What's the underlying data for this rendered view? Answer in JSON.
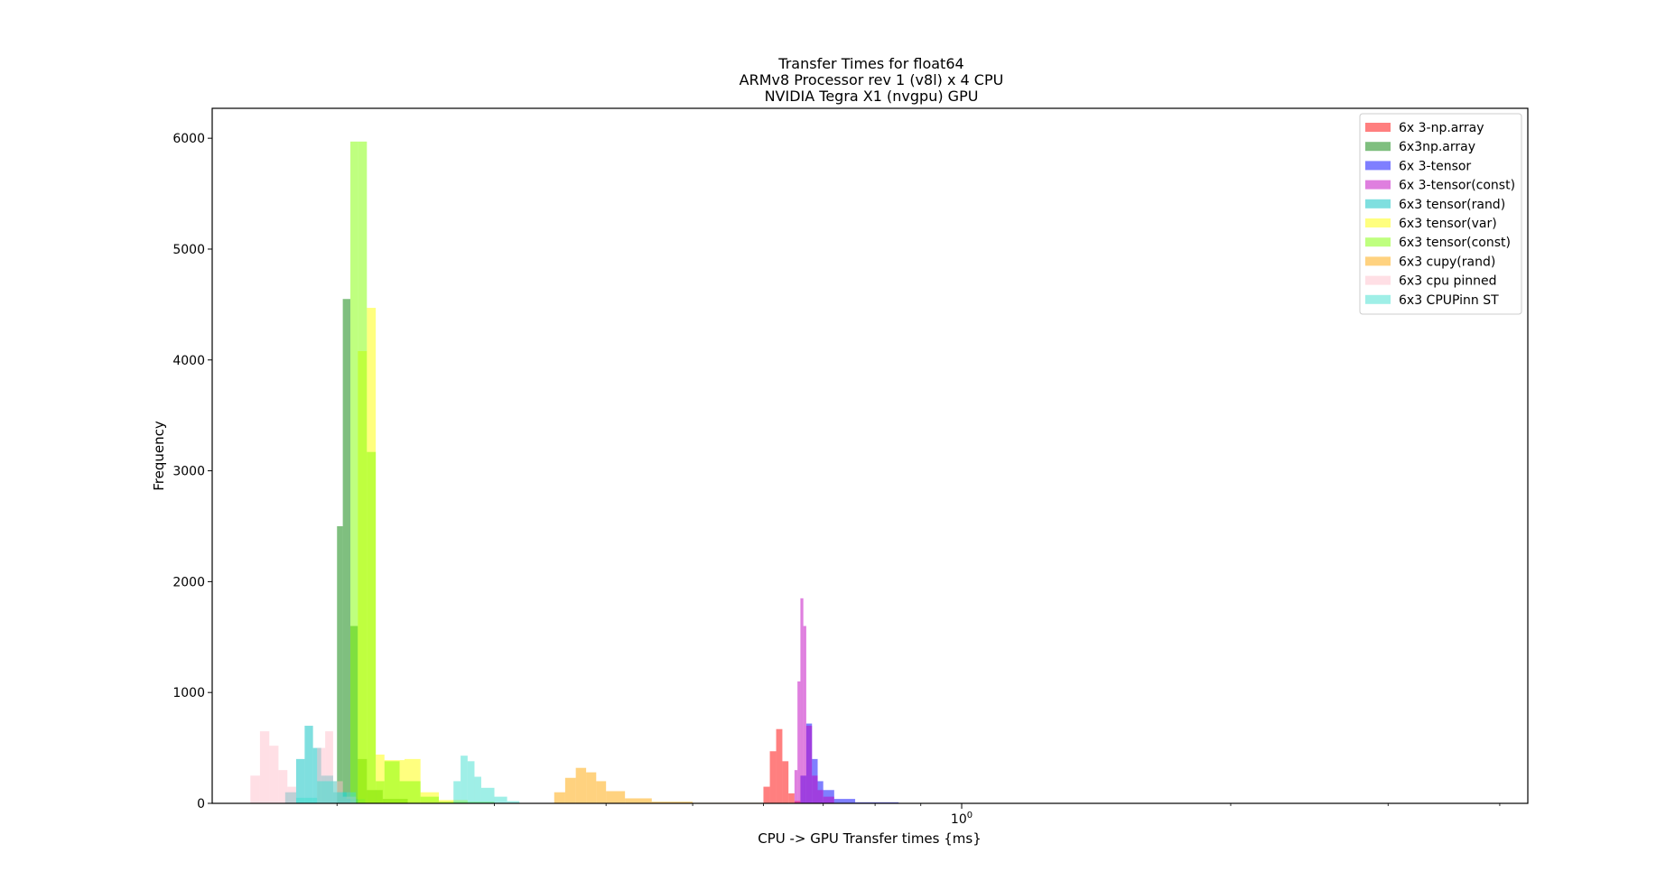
{
  "chart_data": {
    "type": "bar",
    "title": "Transfer Times for float64",
    "subtitle_lines": [
      "ARMv8 Processor rev 1 (v8l) x 4 CPU",
      "NVIDIA Tegra X1 (nvgpu) GPU"
    ],
    "xlabel": "CPU -> GPU Transfer times {ms}",
    "ylabel": "Frequency",
    "x_scale": "log",
    "xlim": [
      0.145,
      4.3
    ],
    "ylim": [
      0,
      6270
    ],
    "y_ticks": [
      0,
      1000,
      2000,
      3000,
      4000,
      5000,
      6000
    ],
    "x_major_ticks": [
      {
        "value": 1.0,
        "base": "10",
        "exp": "0"
      }
    ],
    "grid": false,
    "legend_position": "top-right",
    "series": [
      {
        "name": "6x 3-np.array",
        "color": "#ff0000",
        "alpha": 0.5,
        "bins": [
          [
            0.6,
            0.61,
            150
          ],
          [
            0.61,
            0.62,
            470
          ],
          [
            0.62,
            0.63,
            670
          ],
          [
            0.63,
            0.64,
            380
          ],
          [
            0.64,
            0.65,
            90
          ],
          [
            0.65,
            0.66,
            20
          ]
        ]
      },
      {
        "name": "6x3np.array",
        "color": "#008000",
        "alpha": 0.5,
        "bins": [
          [
            0.2,
            0.203,
            2500
          ],
          [
            0.203,
            0.207,
            4550
          ],
          [
            0.207,
            0.211,
            1600
          ],
          [
            0.211,
            0.216,
            400
          ],
          [
            0.216,
            0.225,
            120
          ],
          [
            0.225,
            0.24,
            40
          ]
        ]
      },
      {
        "name": "6x 3-tensor",
        "color": "#0000ff",
        "alpha": 0.5,
        "bins": [
          [
            0.66,
            0.67,
            250
          ],
          [
            0.67,
            0.68,
            720
          ],
          [
            0.68,
            0.69,
            400
          ],
          [
            0.69,
            0.7,
            200
          ],
          [
            0.7,
            0.72,
            120
          ],
          [
            0.72,
            0.76,
            40
          ],
          [
            0.76,
            0.85,
            10
          ]
        ]
      },
      {
        "name": "6x 3-tensor(const)",
        "color": "#bf00bf",
        "alpha": 0.5,
        "bins": [
          [
            0.65,
            0.655,
            300
          ],
          [
            0.655,
            0.66,
            1100
          ],
          [
            0.66,
            0.665,
            1850
          ],
          [
            0.665,
            0.67,
            1600
          ],
          [
            0.67,
            0.68,
            700
          ],
          [
            0.68,
            0.69,
            250
          ],
          [
            0.69,
            0.7,
            120
          ],
          [
            0.7,
            0.72,
            60
          ]
        ]
      },
      {
        "name": "6x3 tensor(rand)",
        "color": "#00bfbf",
        "alpha": 0.5,
        "bins": [
          [
            0.175,
            0.18,
            100
          ],
          [
            0.18,
            0.184,
            400
          ],
          [
            0.184,
            0.188,
            700
          ],
          [
            0.188,
            0.192,
            500
          ],
          [
            0.192,
            0.198,
            250
          ],
          [
            0.198,
            0.205,
            100
          ],
          [
            0.205,
            0.215,
            40
          ]
        ]
      },
      {
        "name": "6x3 tensor(var)",
        "color": "#ffff00",
        "alpha": 0.5,
        "bins": [
          [
            0.211,
            0.216,
            4080
          ],
          [
            0.216,
            0.221,
            4470
          ],
          [
            0.221,
            0.226,
            440
          ],
          [
            0.226,
            0.238,
            390
          ],
          [
            0.238,
            0.248,
            400
          ],
          [
            0.248,
            0.26,
            100
          ],
          [
            0.26,
            0.28,
            30
          ]
        ]
      },
      {
        "name": "6x3 tensor(const)",
        "color": "#7fff00",
        "alpha": 0.5,
        "bins": [
          [
            0.207,
            0.211,
            5970
          ],
          [
            0.211,
            0.216,
            5970
          ],
          [
            0.216,
            0.221,
            3170
          ],
          [
            0.221,
            0.226,
            200
          ],
          [
            0.226,
            0.235,
            380
          ],
          [
            0.235,
            0.248,
            200
          ],
          [
            0.248,
            0.26,
            60
          ],
          [
            0.26,
            0.3,
            15
          ]
        ]
      },
      {
        "name": "6x3 cupy(rand)",
        "color": "#ffa500",
        "alpha": 0.5,
        "bins": [
          [
            0.35,
            0.36,
            100
          ],
          [
            0.36,
            0.37,
            230
          ],
          [
            0.37,
            0.38,
            320
          ],
          [
            0.38,
            0.39,
            280
          ],
          [
            0.39,
            0.4,
            200
          ],
          [
            0.4,
            0.42,
            110
          ],
          [
            0.42,
            0.45,
            45
          ],
          [
            0.45,
            0.5,
            15
          ],
          [
            0.5,
            0.6,
            5
          ]
        ]
      },
      {
        "name": "6x3 cpu pinned",
        "color": "#ffc0cb",
        "alpha": 0.5,
        "bins": [
          [
            0.16,
            0.164,
            250
          ],
          [
            0.164,
            0.168,
            650
          ],
          [
            0.168,
            0.172,
            520
          ],
          [
            0.172,
            0.176,
            300
          ],
          [
            0.176,
            0.18,
            150
          ],
          [
            0.19,
            0.194,
            500
          ],
          [
            0.194,
            0.198,
            650
          ],
          [
            0.198,
            0.203,
            200
          ],
          [
            0.203,
            0.21,
            60
          ]
        ]
      },
      {
        "name": "6x3 CPUPinn ST",
        "color": "#40e0d0",
        "alpha": 0.5,
        "bins": [
          [
            0.18,
            0.19,
            50
          ],
          [
            0.19,
            0.2,
            200
          ],
          [
            0.2,
            0.21,
            100
          ],
          [
            0.27,
            0.275,
            200
          ],
          [
            0.275,
            0.28,
            430
          ],
          [
            0.28,
            0.285,
            380
          ],
          [
            0.285,
            0.29,
            240
          ],
          [
            0.29,
            0.3,
            140
          ],
          [
            0.3,
            0.31,
            60
          ],
          [
            0.31,
            0.32,
            20
          ]
        ]
      }
    ]
  }
}
